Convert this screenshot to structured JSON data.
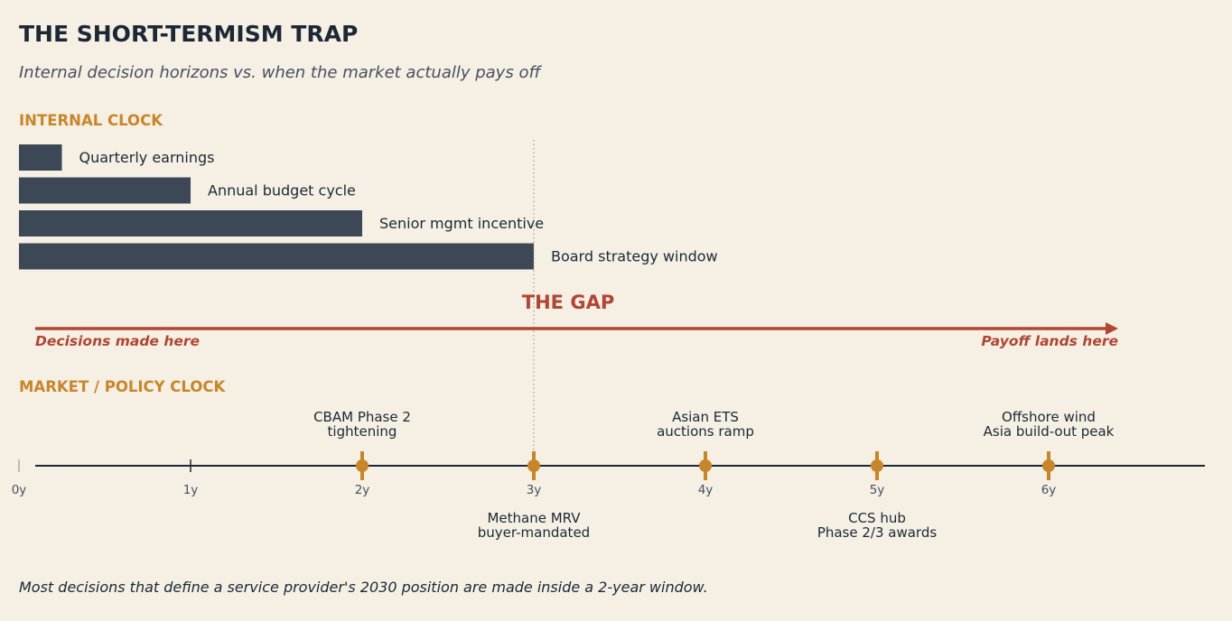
{
  "title": "THE SHORT-TERMISM TRAP",
  "subtitle": "Internal decision horizons vs. when the market actually pays off",
  "footnote": "Most decisions that define a service provider's 2030 position are made inside a 2-year window.",
  "colors": {
    "background": "#f5efe4",
    "title": "#1c2836",
    "subtitle": "#48505f",
    "section_label": "#c8862b",
    "bar": "#3d4856",
    "gap": "#b04634",
    "milestone": "#c8862b",
    "axis": "#1c2836"
  },
  "internal": {
    "section_label": "INTERNAL CLOCK"
  },
  "gap": {
    "label": "THE GAP",
    "left_caption": "Decisions made here",
    "right_caption": "Payoff lands here"
  },
  "market": {
    "section_label": "MARKET / POLICY CLOCK"
  },
  "chart_data": [
    {
      "type": "bar",
      "orientation": "horizontal",
      "title": "INTERNAL CLOCK",
      "unit": "years",
      "categories": [
        "Quarterly earnings",
        "Annual budget cycle",
        "Senior mgmt incentive",
        "Board strategy window"
      ],
      "values": [
        0.25,
        1,
        2,
        3
      ]
    },
    {
      "type": "scatter",
      "title": "MARKET / POLICY CLOCK",
      "axis": {
        "min": 0,
        "max": 7,
        "ticks": [
          0,
          1,
          2,
          3,
          4,
          5,
          6
        ],
        "tick_labels": [
          "0y",
          "1y",
          "2y",
          "3y",
          "4y",
          "5y",
          "6y"
        ]
      },
      "reference_line_year": 3,
      "milestones": [
        {
          "year": 2,
          "label": [
            "CBAM Phase 2",
            "tightening"
          ],
          "position": "above"
        },
        {
          "year": 3,
          "label": [
            "Methane MRV",
            "buyer-mandated"
          ],
          "position": "below"
        },
        {
          "year": 4,
          "label": [
            "Asian ETS",
            "auctions ramp"
          ],
          "position": "above"
        },
        {
          "year": 5,
          "label": [
            "CCS hub",
            "Phase 2/3 awards"
          ],
          "position": "below"
        },
        {
          "year": 6,
          "label": [
            "Offshore wind",
            "Asia build-out peak"
          ],
          "position": "above"
        }
      ]
    }
  ]
}
